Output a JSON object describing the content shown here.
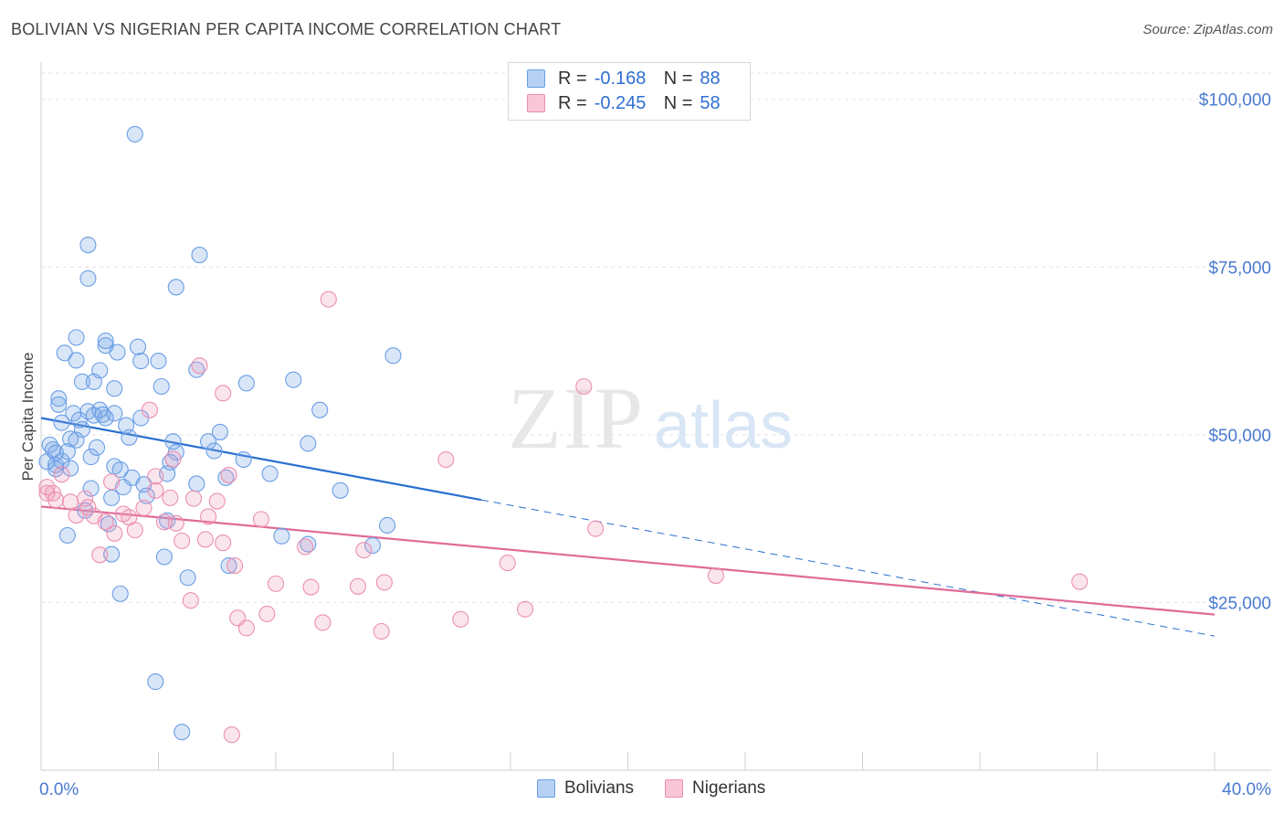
{
  "header": {
    "title": "BOLIVIAN VS NIGERIAN PER CAPITA INCOME CORRELATION CHART",
    "source": "Source: ZipAtlas.com"
  },
  "watermark": {
    "zip": "ZIP",
    "atlas": "atlas"
  },
  "legend": {
    "rows": [
      {
        "r_label": "R =",
        "r_value": "-0.168",
        "n_label": "N =",
        "n_value": "88",
        "color": "#6a9ee6"
      },
      {
        "r_label": "R =",
        "r_value": "-0.245",
        "n_label": "N =",
        "n_value": "58",
        "color": "#ec8fb0"
      }
    ]
  },
  "bottom_legend": {
    "items": [
      "Bolivians",
      "Nigerians"
    ]
  },
  "chart_data": {
    "type": "scatter",
    "ylabel": "Per Capita Income",
    "xlim": [
      0,
      40
    ],
    "ylim": [
      0,
      105000
    ],
    "x_tick_labels": [
      "0.0%",
      "40.0%"
    ],
    "y_ticks": [
      25000,
      50000,
      75000,
      100000
    ],
    "y_tick_labels": [
      "$25,000",
      "$50,000",
      "$75,000",
      "$100,000"
    ],
    "grid": true,
    "series": [
      {
        "name": "Bolivians",
        "color": "#6a9ee6",
        "trend": {
          "x0": 0,
          "y0": 52500,
          "x1": 15,
          "y1": 40300,
          "dash_to_x": 40,
          "dash_to_y": 20000
        },
        "points": [
          [
            3.2,
            94800
          ],
          [
            1.6,
            78300
          ],
          [
            5.4,
            76800
          ],
          [
            1.6,
            73300
          ],
          [
            4.6,
            72000
          ],
          [
            1.2,
            64500
          ],
          [
            2.2,
            64000
          ],
          [
            2.2,
            63300
          ],
          [
            3.3,
            63100
          ],
          [
            0.8,
            62200
          ],
          [
            2.6,
            62300
          ],
          [
            12.0,
            61800
          ],
          [
            1.2,
            61100
          ],
          [
            3.4,
            61000
          ],
          [
            4.0,
            61000
          ],
          [
            2.0,
            59600
          ],
          [
            5.3,
            59700
          ],
          [
            1.4,
            57900
          ],
          [
            1.8,
            57900
          ],
          [
            7.0,
            57700
          ],
          [
            8.6,
            58200
          ],
          [
            4.1,
            57200
          ],
          [
            2.5,
            56900
          ],
          [
            0.6,
            55400
          ],
          [
            0.6,
            54500
          ],
          [
            1.6,
            53500
          ],
          [
            2.0,
            53700
          ],
          [
            1.1,
            53200
          ],
          [
            2.1,
            53000
          ],
          [
            2.5,
            53200
          ],
          [
            9.5,
            53700
          ],
          [
            3.4,
            52500
          ],
          [
            1.8,
            52900
          ],
          [
            2.2,
            52500
          ],
          [
            1.3,
            52200
          ],
          [
            0.7,
            51800
          ],
          [
            1.4,
            50800
          ],
          [
            2.9,
            51400
          ],
          [
            6.1,
            50400
          ],
          [
            1.0,
            49400
          ],
          [
            4.5,
            49000
          ],
          [
            1.2,
            49200
          ],
          [
            5.7,
            49000
          ],
          [
            9.1,
            48700
          ],
          [
            0.3,
            48500
          ],
          [
            0.4,
            47800
          ],
          [
            0.5,
            47300
          ],
          [
            1.9,
            48100
          ],
          [
            4.6,
            47400
          ],
          [
            5.9,
            47600
          ],
          [
            1.7,
            46700
          ],
          [
            0.7,
            46100
          ],
          [
            6.9,
            46300
          ],
          [
            0.5,
            45500
          ],
          [
            0.5,
            44900
          ],
          [
            2.5,
            45300
          ],
          [
            2.7,
            44800
          ],
          [
            4.4,
            45900
          ],
          [
            3.1,
            43600
          ],
          [
            4.3,
            44200
          ],
          [
            1.7,
            42000
          ],
          [
            3.5,
            42600
          ],
          [
            5.3,
            42700
          ],
          [
            2.8,
            42200
          ],
          [
            3.6,
            40900
          ],
          [
            4.3,
            37200
          ],
          [
            2.4,
            40600
          ],
          [
            1.5,
            38700
          ],
          [
            11.8,
            36500
          ],
          [
            8.2,
            34900
          ],
          [
            9.1,
            33700
          ],
          [
            11.3,
            33500
          ],
          [
            4.2,
            31800
          ],
          [
            6.4,
            30500
          ],
          [
            2.4,
            32200
          ],
          [
            5.0,
            28700
          ],
          [
            2.7,
            26300
          ],
          [
            3.9,
            13200
          ],
          [
            4.8,
            5700
          ],
          [
            0.9,
            35000
          ],
          [
            2.3,
            36700
          ],
          [
            1.0,
            45000
          ],
          [
            0.2,
            46000
          ],
          [
            0.9,
            47500
          ],
          [
            3.0,
            49600
          ],
          [
            7.8,
            44200
          ],
          [
            6.3,
            43600
          ],
          [
            10.2,
            41700
          ]
        ]
      },
      {
        "name": "Nigerians",
        "color": "#ec8fb0",
        "trend": {
          "x0": 0,
          "y0": 39300,
          "x1": 40,
          "y1": 23200
        },
        "points": [
          [
            0.2,
            42200
          ],
          [
            0.2,
            41300
          ],
          [
            0.4,
            41300
          ],
          [
            0.7,
            44100
          ],
          [
            1.5,
            40500
          ],
          [
            1.0,
            40000
          ],
          [
            1.6,
            39200
          ],
          [
            1.8,
            37900
          ],
          [
            2.2,
            37000
          ],
          [
            2.0,
            32100
          ],
          [
            2.5,
            35300
          ],
          [
            3.0,
            37700
          ],
          [
            3.2,
            35800
          ],
          [
            3.5,
            39100
          ],
          [
            3.7,
            53700
          ],
          [
            3.9,
            41700
          ],
          [
            4.2,
            37000
          ],
          [
            4.5,
            46400
          ],
          [
            4.4,
            40600
          ],
          [
            5.2,
            40500
          ],
          [
            5.4,
            60300
          ],
          [
            5.7,
            37800
          ],
          [
            6.0,
            40100
          ],
          [
            6.2,
            33900
          ],
          [
            5.6,
            34400
          ],
          [
            6.2,
            56200
          ],
          [
            6.4,
            44000
          ],
          [
            6.6,
            30500
          ],
          [
            7.5,
            37400
          ],
          [
            7.7,
            23300
          ],
          [
            8.0,
            27800
          ],
          [
            9.0,
            33300
          ],
          [
            9.2,
            27300
          ],
          [
            9.8,
            70200
          ],
          [
            9.6,
            22000
          ],
          [
            10.8,
            27400
          ],
          [
            11.0,
            32800
          ],
          [
            11.7,
            28000
          ],
          [
            11.6,
            20700
          ],
          [
            13.8,
            46300
          ],
          [
            14.3,
            22500
          ],
          [
            15.9,
            30900
          ],
          [
            16.5,
            24000
          ],
          [
            18.5,
            57200
          ],
          [
            18.9,
            36000
          ],
          [
            23.0,
            29000
          ],
          [
            35.4,
            28100
          ],
          [
            6.5,
            5300
          ],
          [
            5.1,
            25300
          ],
          [
            7.0,
            21200
          ],
          [
            6.7,
            22700
          ],
          [
            4.8,
            34200
          ],
          [
            3.9,
            43800
          ],
          [
            2.4,
            43000
          ],
          [
            1.2,
            38000
          ],
          [
            0.5,
            40300
          ],
          [
            2.8,
            38200
          ],
          [
            4.6,
            36800
          ]
        ]
      }
    ]
  }
}
